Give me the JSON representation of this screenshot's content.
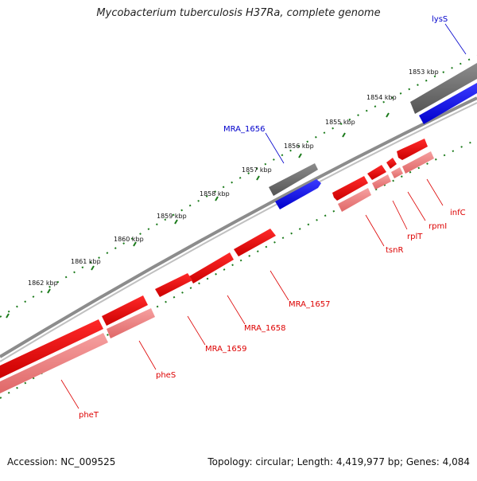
{
  "title": "Mycobacterium tuberculosis H37Ra, complete genome",
  "footer": {
    "accession": "Accession: NC_009525",
    "summary": "Topology: circular; Length: 4,419,977 bp; Genes: 4,084"
  },
  "colors": {
    "backbone": "#8a8a8a",
    "forward_gene": "#6b6b6b",
    "forward_cds": "#0000ee",
    "reverse_gene": "#ee0000",
    "reverse_cds": "#f08080",
    "ticks": "#1a7a1a",
    "label_forward": "#0000cc",
    "label_reverse": "#dd0000"
  },
  "ticks": [
    {
      "label": "1853 kbp"
    },
    {
      "label": "1854 kbp"
    },
    {
      "label": "1855 kbp"
    },
    {
      "label": "1856 kbp"
    },
    {
      "label": "1857 kbp"
    },
    {
      "label": "1858 kbp"
    },
    {
      "label": "1859 kbp"
    },
    {
      "label": "1860 kbp"
    },
    {
      "label": "1861 kbp"
    },
    {
      "label": "1862 kbp"
    }
  ],
  "labels": {
    "lysS": "lysS",
    "MRA_1656": "MRA_1656",
    "infC": "infC",
    "rpmI": "rpmI",
    "rplT": "rplT",
    "tsnR": "tsnR",
    "MRA_1657": "MRA_1657",
    "MRA_1658": "MRA_1658",
    "MRA_1659": "MRA_1659",
    "pheS": "pheS",
    "pheT": "pheT"
  }
}
